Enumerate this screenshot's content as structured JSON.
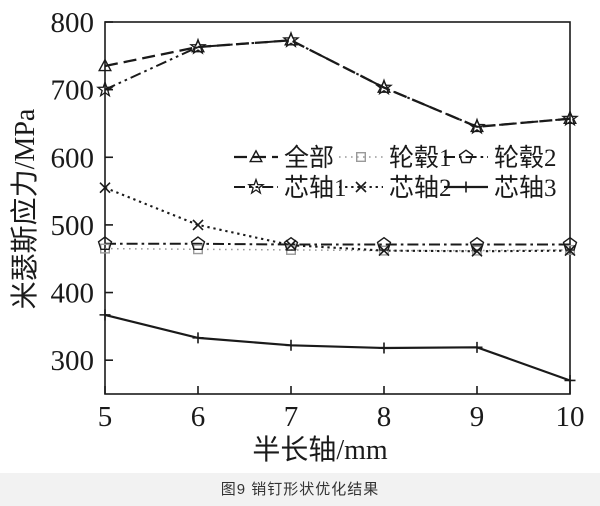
{
  "figure": {
    "caption": "图9  销钉形状优化结果"
  },
  "chart_data": {
    "type": "line",
    "title": "",
    "xlabel": "半长轴/mm",
    "ylabel": "米瑟斯应力/MPa",
    "x": [
      5,
      6,
      7,
      8,
      9,
      10
    ],
    "xlim": [
      5,
      10
    ],
    "ylim": [
      250,
      800
    ],
    "xticks": [
      5,
      6,
      7,
      8,
      9,
      10
    ],
    "yticks": [
      300,
      400,
      500,
      600,
      700,
      800
    ],
    "grid": false,
    "legend_position": "inside-middle-right",
    "axis_color": "#1a1a1a",
    "series": [
      {
        "name": "全部",
        "marker": "triangle",
        "line": "dashed",
        "color": "#1a1a1a",
        "values": [
          735,
          763,
          773,
          703,
          645,
          657
        ]
      },
      {
        "name": "轮毂1",
        "marker": "square",
        "line": "dotted-fine",
        "color": "#9a9a9a",
        "values": [
          465,
          464,
          463,
          462,
          462,
          463
        ]
      },
      {
        "name": "轮毂2",
        "marker": "pentagon",
        "line": "dashdot",
        "color": "#1a1a1a",
        "values": [
          472,
          472,
          471,
          471,
          471,
          471
        ]
      },
      {
        "name": "芯轴1",
        "marker": "star",
        "line": "dashdotdot",
        "color": "#1a1a1a",
        "values": [
          700,
          763,
          773,
          703,
          645,
          657
        ]
      },
      {
        "name": "芯轴2",
        "marker": "cross",
        "line": "dotted",
        "color": "#1a1a1a",
        "values": [
          555,
          500,
          470,
          462,
          461,
          462
        ]
      },
      {
        "name": "芯轴3",
        "marker": "plus",
        "line": "solid",
        "color": "#1a1a1a",
        "values": [
          367,
          333,
          322,
          318,
          319,
          270
        ]
      }
    ]
  }
}
